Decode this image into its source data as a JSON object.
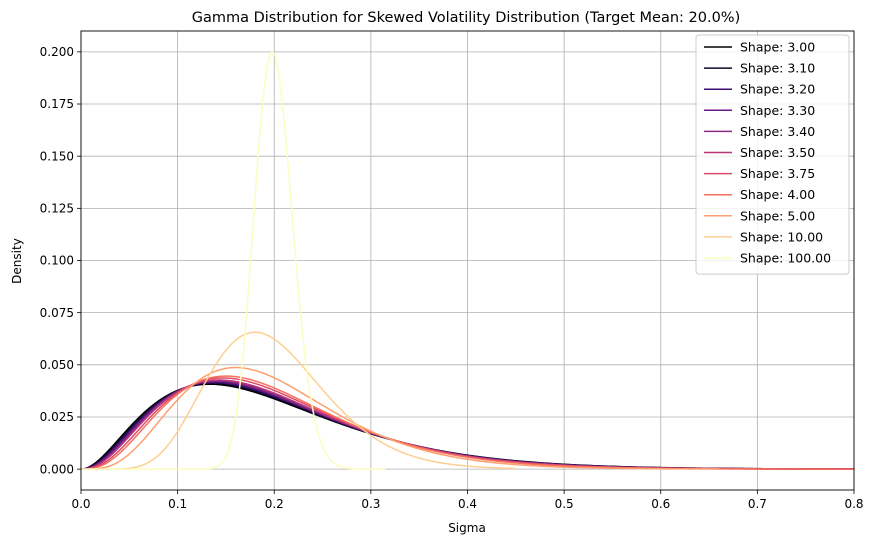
{
  "chart_data": {
    "type": "line",
    "title": "Gamma Distribution for Skewed Volatility Distribution (Target Mean: 20.0%)",
    "xlabel": "Sigma",
    "ylabel": "Density",
    "xlim": [
      0,
      0.8
    ],
    "ylim": [
      -0.01,
      0.21
    ],
    "x_ticks": [
      0.0,
      0.1,
      0.2,
      0.3,
      0.4,
      0.5,
      0.6,
      0.7,
      0.8
    ],
    "x_tick_labels": [
      "0.0",
      "0.1",
      "0.2",
      "0.3",
      "0.4",
      "0.5",
      "0.6",
      "0.7",
      "0.8"
    ],
    "y_ticks": [
      0.0,
      0.025,
      0.05,
      0.075,
      0.1,
      0.125,
      0.15,
      0.175,
      0.2
    ],
    "y_tick_labels": [
      "0.000",
      "0.025",
      "0.050",
      "0.075",
      "0.100",
      "0.125",
      "0.150",
      "0.175",
      "0.200"
    ],
    "grid": true,
    "legend_position": "top-right",
    "target_mean": 0.2,
    "series": [
      {
        "name": "Shape: 3.00",
        "shape": 3.0,
        "color": "#000004",
        "x_max": 0.8,
        "peak": 0.0407
      },
      {
        "name": "Shape: 3.10",
        "shape": 3.1,
        "color": "#0c0926",
        "x_max": 0.8,
        "peak": 0.0411
      },
      {
        "name": "Shape: 3.20",
        "shape": 3.2,
        "color": "#3b0f70",
        "x_max": 0.8,
        "peak": 0.0415
      },
      {
        "name": "Shape: 3.30",
        "shape": 3.3,
        "color": "#641a80",
        "x_max": 0.8,
        "peak": 0.0419
      },
      {
        "name": "Shape: 3.40",
        "shape": 3.4,
        "color": "#8c2981",
        "x_max": 0.8,
        "peak": 0.0423
      },
      {
        "name": "Shape: 3.50",
        "shape": 3.5,
        "color": "#b73779",
        "x_max": 0.8,
        "peak": 0.0427
      },
      {
        "name": "Shape: 3.75",
        "shape": 3.75,
        "color": "#de4968",
        "x_max": 0.8,
        "peak": 0.0437
      },
      {
        "name": "Shape: 4.00",
        "shape": 4.0,
        "color": "#f7705c",
        "x_max": 0.8,
        "peak": 0.0446
      },
      {
        "name": "Shape: 5.00",
        "shape": 5.0,
        "color": "#fe9f6d",
        "x_max": 0.66,
        "peak": 0.0487
      },
      {
        "name": "Shape: 10.00",
        "shape": 10.0,
        "color": "#fecf92",
        "x_max": 0.45,
        "peak": 0.0656
      },
      {
        "name": "Shape: 100.00",
        "shape": 100.0,
        "color": "#fcfdbf",
        "x_max": 0.315,
        "peak": 0.1999
      }
    ]
  }
}
